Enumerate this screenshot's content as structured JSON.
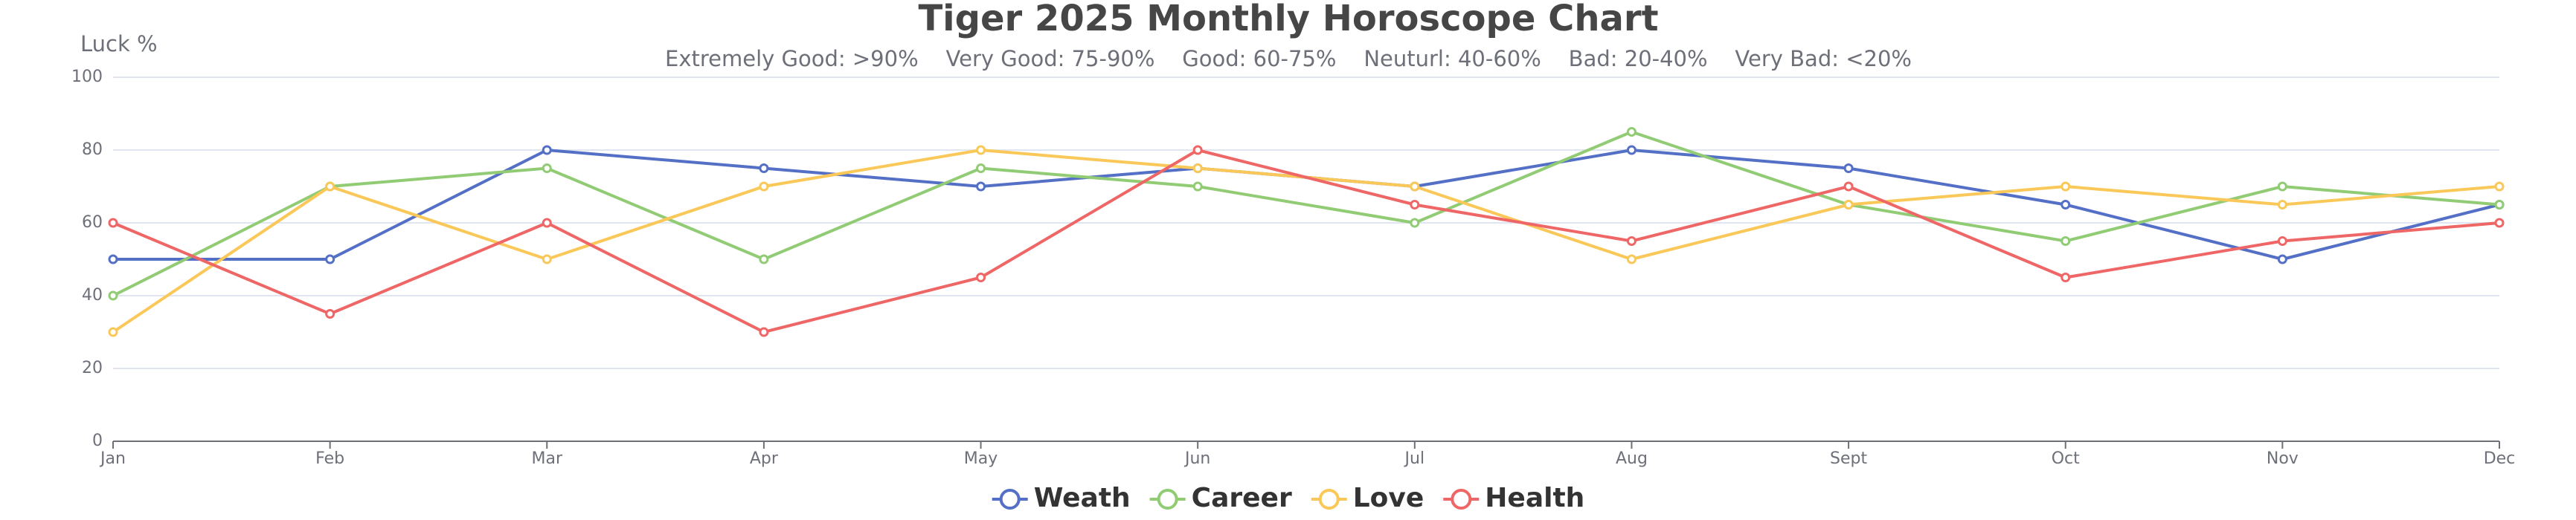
{
  "chart_data": {
    "type": "line",
    "title": "Tiger 2025 Monthly Horoscope Chart",
    "subtitle": "Extremely Good: >90%    Very Good: 75-90%    Good: 60-75%    Neuturl: 40-60%    Bad: 20-40%    Very Bad: <20%",
    "y_label": "Luck %",
    "categories": [
      "Jan",
      "Feb",
      "Mar",
      "Apr",
      "May",
      "Jun",
      "Jul",
      "Aug",
      "Sept",
      "Oct",
      "Nov",
      "Dec"
    ],
    "series": [
      {
        "name": "Weath",
        "color": "#5470c6",
        "values": [
          50,
          50,
          80,
          75,
          70,
          75,
          70,
          80,
          75,
          65,
          50,
          65
        ]
      },
      {
        "name": "Career",
        "color": "#91cc75",
        "values": [
          40,
          70,
          75,
          50,
          75,
          70,
          60,
          85,
          65,
          55,
          70,
          65
        ]
      },
      {
        "name": "Love",
        "color": "#fac858",
        "values": [
          30,
          70,
          50,
          70,
          80,
          75,
          70,
          50,
          65,
          70,
          65,
          70
        ]
      },
      {
        "name": "Health",
        "color": "#ee6666",
        "values": [
          60,
          35,
          60,
          30,
          45,
          80,
          65,
          55,
          70,
          45,
          55,
          60
        ]
      }
    ],
    "ylim": [
      0,
      100
    ],
    "yticks": [
      0,
      20,
      40,
      60,
      80,
      100
    ],
    "grid": true,
    "legend": "bottom"
  }
}
